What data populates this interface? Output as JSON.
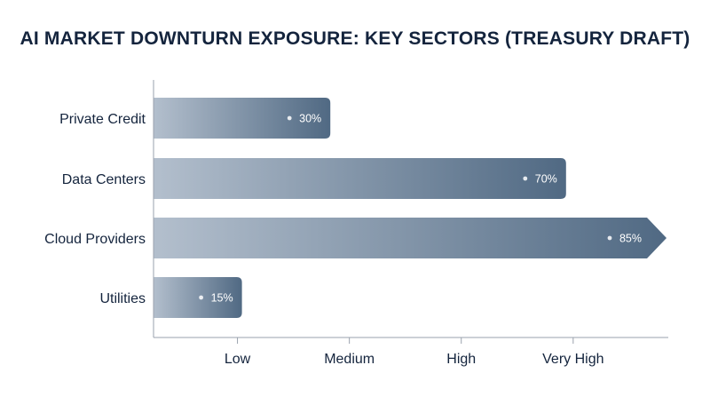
{
  "chart_data": {
    "type": "bar",
    "orientation": "horizontal",
    "title": "AI MARKET DOWNTURN EXPOSURE: KEY SECTORS (TREASURY DRAFT)",
    "categories": [
      "Private Credit",
      "Data Centers",
      "Cloud Providers",
      "Utilities"
    ],
    "values": [
      30,
      70,
      85,
      15
    ],
    "value_labels": [
      "30%",
      "70%",
      "85%",
      "15%"
    ],
    "x_tick_labels": [
      "Low",
      "Medium",
      "High",
      "Very High"
    ],
    "x_tick_values": [
      15,
      35,
      55,
      75
    ],
    "xlim": [
      0,
      92
    ],
    "grid": false,
    "legend": "none",
    "colors": {
      "bar_start": "#b3bfcd",
      "bar_end": "#506983",
      "axis": "#9aa2ad",
      "title": "#14243d",
      "label": "#14243d"
    }
  }
}
